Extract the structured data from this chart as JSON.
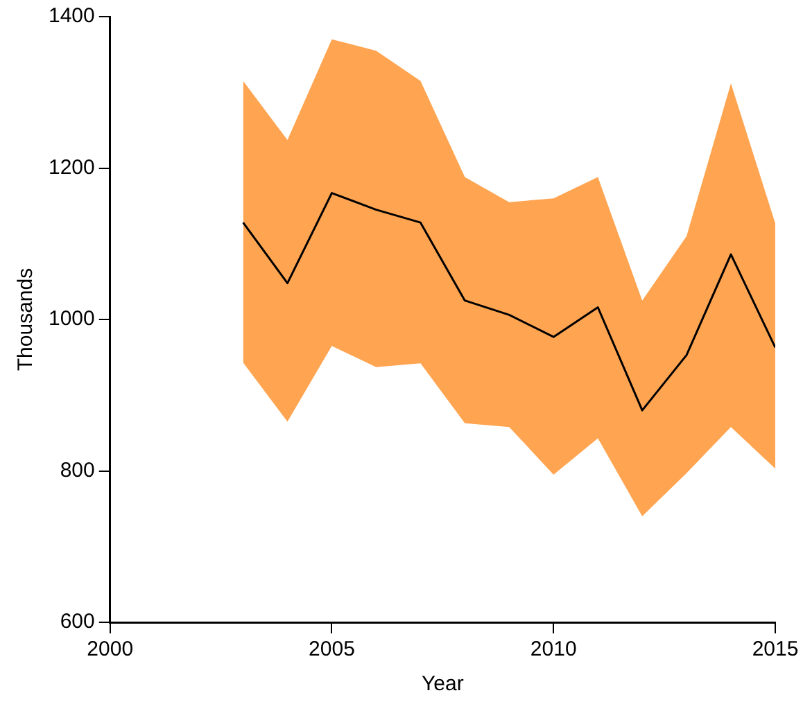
{
  "chart_data": {
    "type": "line",
    "xlabel": "Year",
    "ylabel": "Thousands",
    "x": [
      2003,
      2004,
      2005,
      2006,
      2007,
      2008,
      2009,
      2010,
      2011,
      2012,
      2013,
      2014,
      2015
    ],
    "series": [
      {
        "color": "#000000",
        "values": [
          1128,
          1048,
          1167,
          1145,
          1128,
          1025,
          1006,
          977,
          1016,
          880,
          953,
          1086,
          963
        ],
        "lower": [
          943,
          865,
          965,
          937,
          942,
          863,
          858,
          795,
          843,
          740,
          797,
          858,
          803
        ],
        "upper": [
          1315,
          1237,
          1370,
          1355,
          1315,
          1188,
          1155,
          1160,
          1188,
          1025,
          1110,
          1312,
          1127
        ]
      }
    ],
    "xlim": [
      2000,
      2015
    ],
    "xticks": [
      2000,
      2005,
      2010,
      2015
    ],
    "ylim": [
      600,
      1400
    ],
    "yticks": [
      600,
      800,
      1000,
      1200,
      1400
    ],
    "grid": false,
    "legend": false,
    "marker": "none",
    "line_style": "solid"
  }
}
